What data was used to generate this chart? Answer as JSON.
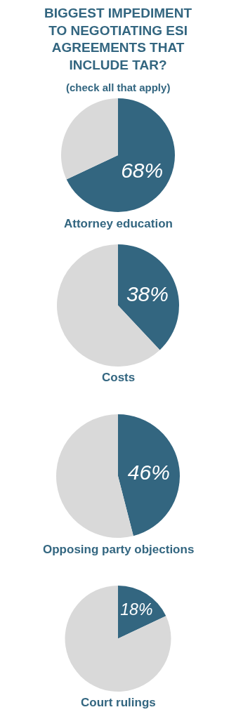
{
  "chart_data": [
    {
      "type": "pie",
      "title": "BIGGEST IMPEDIMENT TO NEGOTIATING ESI AGREEMENTS THAT INCLUDE TAR?",
      "subtitle": "(check all that apply)",
      "xlabel": "Attorney education",
      "categories": [
        null,
        null
      ],
      "values": [
        68,
        32
      ],
      "colors": [
        "#336680",
        "#d9d9d9"
      ],
      "value_labels": [
        "68%",
        null
      ],
      "legend": false
    },
    {
      "type": "pie",
      "xlabel": "Costs",
      "categories": [
        null,
        null
      ],
      "values": [
        38,
        62
      ],
      "colors": [
        "#336680",
        "#d9d9d9"
      ],
      "value_labels": [
        "38%",
        null
      ],
      "legend": false
    },
    {
      "type": "pie",
      "xlabel": "Opposing party objections",
      "categories": [
        null,
        null
      ],
      "values": [
        46,
        54
      ],
      "colors": [
        "#336680",
        "#d9d9d9"
      ],
      "value_labels": [
        "46%",
        null
      ],
      "legend": false
    },
    {
      "type": "pie",
      "xlabel": "Court rulings",
      "categories": [
        null,
        null
      ],
      "values": [
        18,
        82
      ],
      "colors": [
        "#336680",
        "#d9d9d9"
      ],
      "value_labels": [
        "18%",
        null
      ],
      "legend": false
    }
  ]
}
